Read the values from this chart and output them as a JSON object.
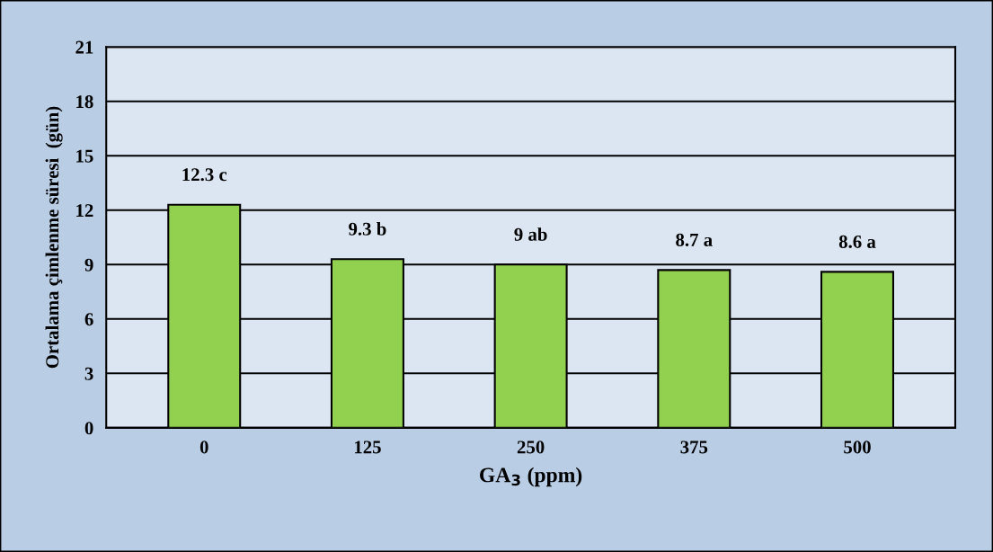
{
  "chart_data": {
    "type": "bar",
    "xlabel": "GA$_{3}$ (ppm)",
    "ylabel": "Ortalama çimlenme süresi  (gün)",
    "categories": [
      "0",
      "125",
      "250",
      "375",
      "500"
    ],
    "values": [
      12.3,
      9.3,
      9,
      8.7,
      8.6
    ],
    "value_labels": [
      "12.3 c",
      "9.3 b",
      "9 ab",
      "8.7 a",
      "8.6 a"
    ],
    "color": "#92d050",
    "ylim": [
      0,
      21
    ],
    "yticks": [
      0,
      3,
      6,
      9,
      12,
      15,
      18,
      21
    ],
    "grid": "y",
    "legend": false
  }
}
